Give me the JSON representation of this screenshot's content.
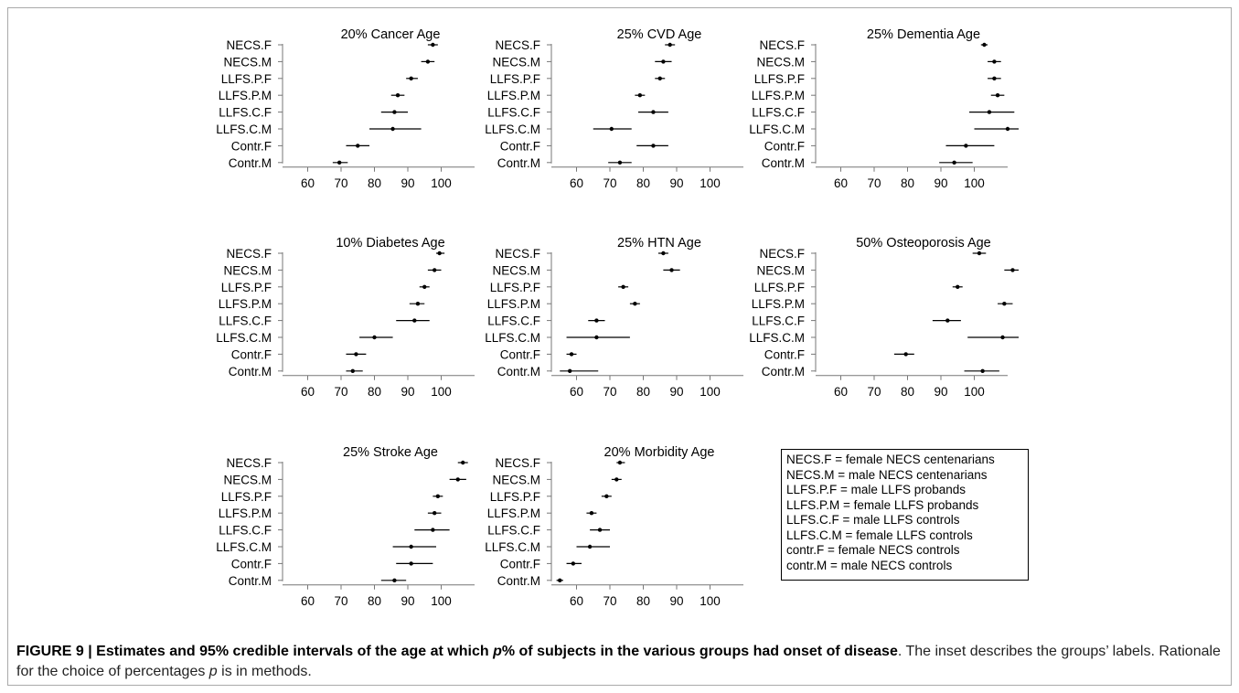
{
  "chart_data": [
    {
      "type": "forest",
      "title": "20% Cancer Age",
      "categories": [
        "NECS.F",
        "NECS.M",
        "LLFS.P.F",
        "LLFS.P.M",
        "LLFS.C.F",
        "LLFS.C.M",
        "Contr.F",
        "Contr.M"
      ],
      "estimate": [
        97.5,
        96,
        91,
        87,
        86,
        85.5,
        75,
        69.5
      ],
      "lower": [
        96,
        94,
        89.5,
        85,
        82,
        78.5,
        71.5,
        67.5
      ],
      "upper": [
        99,
        98,
        93,
        89,
        90,
        94,
        78.5,
        72
      ],
      "xticks": [
        60,
        70,
        80,
        90,
        100
      ],
      "xlim": [
        55,
        110
      ]
    },
    {
      "type": "forest",
      "title": "25% CVD Age",
      "categories": [
        "NECS.F",
        "NECS.M",
        "LLFS.P.F",
        "LLFS.P.M",
        "LLFS.C.F",
        "LLFS.C.M",
        "Contr.F",
        "Contr.M"
      ],
      "estimate": [
        88,
        86,
        85,
        79,
        83,
        70.5,
        83,
        73
      ],
      "lower": [
        86.5,
        83.5,
        83.5,
        77.5,
        78.5,
        65,
        78,
        69.5
      ],
      "upper": [
        89.5,
        88.5,
        86.5,
        80.5,
        87.5,
        76.5,
        87.5,
        76.5
      ],
      "xticks": [
        60,
        70,
        80,
        90,
        100
      ],
      "xlim": [
        55,
        110
      ]
    },
    {
      "type": "forest",
      "title": "25% Dementia Age",
      "categories": [
        "NECS.F",
        "NECS.M",
        "LLFS.P.F",
        "LLFS.P.M",
        "LLFS.C.F",
        "LLFS.C.M",
        "Contr.F",
        "Contr.M"
      ],
      "estimate": [
        103,
        106,
        106,
        107,
        104.5,
        110,
        97.5,
        94
      ],
      "lower": [
        102,
        104,
        104,
        105,
        98.5,
        100,
        91.5,
        89.5
      ],
      "upper": [
        104,
        108,
        108,
        109,
        112,
        120,
        106,
        99.5
      ],
      "xticks": [
        60,
        70,
        80,
        90,
        100
      ],
      "xlim": [
        55,
        120
      ]
    },
    {
      "type": "forest",
      "title": "10% Diabetes Age",
      "categories": [
        "NECS.F",
        "NECS.M",
        "LLFS.P.F",
        "LLFS.P.M",
        "LLFS.C.F",
        "LLFS.C.M",
        "Contr.F",
        "Contr.M"
      ],
      "estimate": [
        99.5,
        98,
        95,
        93,
        92,
        80,
        74.5,
        73.5
      ],
      "lower": [
        98.5,
        96,
        93.5,
        90.5,
        86.5,
        75.5,
        71.5,
        71.5
      ],
      "upper": [
        101,
        100,
        96.5,
        95,
        96.5,
        85.5,
        77.5,
        76.5
      ],
      "xticks": [
        60,
        70,
        80,
        90,
        100
      ],
      "xlim": [
        55,
        110
      ]
    },
    {
      "type": "forest",
      "title": "25% HTN Age",
      "categories": [
        "NECS.F",
        "NECS.M",
        "LLFS.P.F",
        "LLFS.P.M",
        "LLFS.C.F",
        "LLFS.C.M",
        "Contr.F",
        "Contr.M"
      ],
      "estimate": [
        86,
        88.5,
        74,
        77.5,
        66,
        66,
        58.5,
        58
      ],
      "lower": [
        84.5,
        86,
        72.5,
        76,
        63.5,
        57,
        57,
        55
      ],
      "upper": [
        87.5,
        91,
        75.5,
        79,
        68.5,
        76,
        60,
        66.5
      ],
      "xticks": [
        60,
        70,
        80,
        90,
        100
      ],
      "xlim": [
        55,
        110
      ]
    },
    {
      "type": "forest",
      "title": "50% Osteoporosis Age",
      "categories": [
        "NECS.F",
        "NECS.M",
        "LLFS.P.F",
        "LLFS.P.M",
        "LLFS.C.F",
        "LLFS.C.M",
        "Contr.F",
        "Contr.M"
      ],
      "estimate": [
        101.5,
        111.5,
        95,
        109,
        92,
        108.5,
        79.5,
        102.5
      ],
      "lower": [
        99.5,
        109,
        93.5,
        107,
        87.5,
        98,
        76,
        97
      ],
      "upper": [
        103.5,
        114.5,
        96.5,
        111.5,
        96,
        120,
        82,
        107.5
      ],
      "xticks": [
        60,
        70,
        80,
        90,
        100
      ],
      "xlim": [
        55,
        120
      ]
    },
    {
      "type": "forest",
      "title": "25% Stroke Age",
      "categories": [
        "NECS.F",
        "NECS.M",
        "LLFS.P.F",
        "LLFS.P.M",
        "LLFS.C.F",
        "LLFS.C.M",
        "Contr.F",
        "Contr.M"
      ],
      "estimate": [
        106.5,
        105,
        99,
        98,
        97.5,
        91,
        91,
        86
      ],
      "lower": [
        105,
        102.5,
        97.5,
        96,
        92,
        85.5,
        86.5,
        82
      ],
      "upper": [
        108,
        107.5,
        100.5,
        100,
        102.5,
        98.5,
        97.5,
        89.5
      ],
      "xticks": [
        60,
        70,
        80,
        90,
        100
      ],
      "xlim": [
        55,
        110
      ]
    },
    {
      "type": "forest",
      "title": "20% Morbidity Age",
      "categories": [
        "NECS.F",
        "NECS.M",
        "LLFS.P.F",
        "LLFS.P.M",
        "LLFS.C.F",
        "LLFS.C.M",
        "Contr.F",
        "Contr.M"
      ],
      "estimate": [
        73,
        72,
        69,
        64.5,
        67,
        64,
        59,
        55
      ],
      "lower": [
        72,
        70.5,
        67.5,
        63,
        64,
        60,
        57,
        54
      ],
      "upper": [
        74.5,
        73.5,
        70.5,
        66,
        70,
        70,
        61.5,
        56
      ],
      "xticks": [
        60,
        70,
        80,
        90,
        100
      ],
      "xlim": [
        55,
        110
      ]
    }
  ],
  "legend": [
    "NECS.F = female NECS centenarians",
    "NECS.M = male NECS centenarians",
    "LLFS.P.F = male LLFS probands",
    "LLFS.P.M = female LLFS probands",
    "LLFS.C.F = male LLFS controls",
    "LLFS.C.M = female LLFS controls",
    "contr.F = female NECS controls",
    "contr.M = male NECS controls"
  ],
  "caption": {
    "bold_a": "FIGURE 9 | Estimates and 95% credible intervals of the age at which ",
    "bold_p": "p",
    "bold_b": "% of subjects in the various groups had onset of disease",
    "rest_a": ". The inset describes the groups’ labels. Rationale for the choice of percentages ",
    "rest_p": "p",
    "rest_b": " is in methods."
  }
}
